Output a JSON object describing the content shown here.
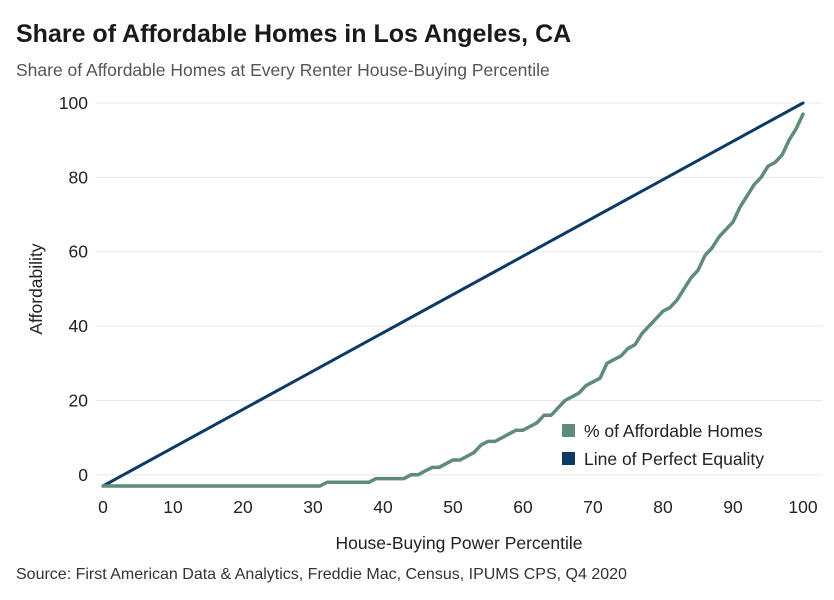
{
  "header": {
    "title": "Share of Affordable Homes in Los Angeles, CA",
    "subtitle": "Share of Affordable Homes at Every Renter House-Buying Percentile"
  },
  "footer": {
    "source": "Source: First American Data & Analytics, Freddie Mac, Census, IPUMS CPS, Q4 2020"
  },
  "colors": {
    "affordable": "#5e8c76",
    "equality": "#0e3a66",
    "grid": "#e8e8e8"
  },
  "chart_data": {
    "type": "line",
    "title": "Share of Affordable Homes in Los Angeles, CA",
    "subtitle": "Share of Affordable Homes at Every Renter House-Buying Percentile",
    "xlabel": "House-Buying Power Percentile",
    "ylabel": "Affordability",
    "xlim": [
      0,
      100
    ],
    "ylim": [
      -3,
      100
    ],
    "xticks": [
      0,
      10,
      20,
      30,
      40,
      50,
      60,
      70,
      80,
      90,
      100
    ],
    "yticks": [
      0,
      20,
      40,
      60,
      80,
      100
    ],
    "grid": "horizontal",
    "legend_position": "bottom-right",
    "series": [
      {
        "name": "% of Affordable Homes",
        "color": "#5e8c76",
        "x": [
          0,
          10,
          20,
          30,
          31,
          32,
          33,
          34,
          35,
          36,
          37,
          38,
          39,
          40,
          41,
          42,
          43,
          44,
          45,
          46,
          47,
          48,
          49,
          50,
          51,
          52,
          53,
          54,
          55,
          56,
          57,
          58,
          59,
          60,
          61,
          62,
          63,
          64,
          65,
          66,
          67,
          68,
          69,
          70,
          71,
          72,
          73,
          74,
          75,
          76,
          77,
          78,
          79,
          80,
          81,
          82,
          83,
          84,
          85,
          86,
          87,
          88,
          89,
          90,
          91,
          92,
          93,
          94,
          95,
          96,
          97,
          98,
          99,
          100
        ],
        "y": [
          -3,
          -3,
          -3,
          -3,
          -3,
          -2,
          -2,
          -2,
          -2,
          -2,
          -2,
          -2,
          -1,
          -1,
          -1,
          -1,
          -1,
          0,
          0,
          1,
          2,
          2,
          3,
          4,
          4,
          5,
          6,
          8,
          9,
          9,
          10,
          11,
          12,
          12,
          13,
          14,
          16,
          16,
          18,
          20,
          21,
          22,
          24,
          25,
          26,
          30,
          31,
          32,
          34,
          35,
          38,
          40,
          42,
          44,
          45,
          47,
          50,
          53,
          55,
          59,
          61,
          64,
          66,
          68,
          72,
          75,
          78,
          80,
          83,
          84,
          86,
          90,
          93,
          97
        ]
      },
      {
        "name": "Line of Perfect Equality",
        "color": "#0e3a66",
        "x": [
          0,
          100
        ],
        "y": [
          -3,
          100
        ]
      }
    ]
  }
}
